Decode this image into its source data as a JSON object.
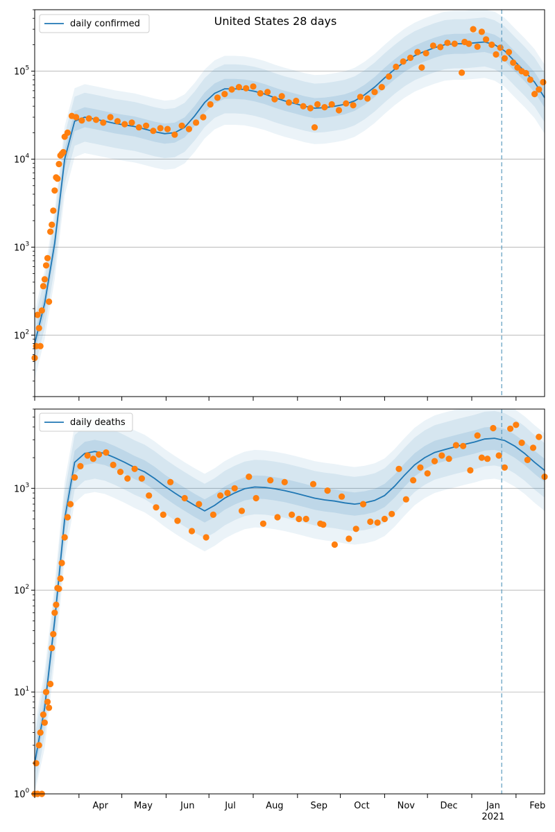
{
  "chart_data": [
    {
      "type": "line",
      "title": "United States 28 days",
      "yscale": "log",
      "ylim": [
        20,
        500000
      ],
      "xlim": [
        "2020-03-01",
        "2021-02-21"
      ],
      "grid": "y",
      "legend_position": "top-left",
      "series": [
        {
          "name": "daily confirmed",
          "kind": "line",
          "color": "#1f77b4",
          "x": [
            "2020-03-01",
            "2020-03-08",
            "2020-03-15",
            "2020-03-22",
            "2020-03-29",
            "2020-04-05",
            "2020-04-12",
            "2020-04-19",
            "2020-04-26",
            "2020-05-03",
            "2020-05-10",
            "2020-05-17",
            "2020-05-24",
            "2020-05-31",
            "2020-06-07",
            "2020-06-14",
            "2020-06-21",
            "2020-06-28",
            "2020-07-05",
            "2020-07-12",
            "2020-07-19",
            "2020-07-26",
            "2020-08-02",
            "2020-08-09",
            "2020-08-16",
            "2020-08-23",
            "2020-08-30",
            "2020-09-06",
            "2020-09-13",
            "2020-09-20",
            "2020-09-27",
            "2020-10-04",
            "2020-10-11",
            "2020-10-18",
            "2020-10-25",
            "2020-11-01",
            "2020-11-08",
            "2020-11-15",
            "2020-11-22",
            "2020-11-29",
            "2020-12-06",
            "2020-12-13",
            "2020-12-20",
            "2020-12-27",
            "2021-01-03",
            "2021-01-10",
            "2021-01-17",
            "2021-01-24",
            "2021-01-31",
            "2021-02-07",
            "2021-02-14",
            "2021-02-21"
          ],
          "y": [
            80,
            230,
            1100,
            10000,
            27000,
            30000,
            28500,
            27000,
            25500,
            24500,
            23500,
            22000,
            20500,
            19500,
            20000,
            23000,
            31000,
            44000,
            56000,
            63000,
            63000,
            62000,
            59000,
            55000,
            50000,
            46000,
            43000,
            40000,
            38000,
            38500,
            40000,
            42000,
            46000,
            54000,
            66000,
            84000,
            105000,
            128000,
            150000,
            168000,
            185000,
            200000,
            205000,
            205000,
            210000,
            215000,
            200000,
            170000,
            130000,
            100000,
            75000,
            50000
          ],
          "band_inner_factor": 1.3,
          "band_outer_factor": 1.9
        },
        {
          "name": "",
          "kind": "scatter",
          "color": "#ff7f0e",
          "x": [
            "2020-03-01",
            "2020-03-02",
            "2020-03-03",
            "2020-03-04",
            "2020-03-05",
            "2020-03-06",
            "2020-03-07",
            "2020-03-08",
            "2020-03-09",
            "2020-03-10",
            "2020-03-11",
            "2020-03-12",
            "2020-03-13",
            "2020-03-14",
            "2020-03-15",
            "2020-03-16",
            "2020-03-17",
            "2020-03-18",
            "2020-03-19",
            "2020-03-20",
            "2020-03-21",
            "2020-03-22",
            "2020-03-24",
            "2020-03-27",
            "2020-03-30",
            "2020-04-03",
            "2020-04-08",
            "2020-04-13",
            "2020-04-18",
            "2020-04-23",
            "2020-04-28",
            "2020-05-03",
            "2020-05-08",
            "2020-05-13",
            "2020-05-18",
            "2020-05-23",
            "2020-05-28",
            "2020-06-02",
            "2020-06-07",
            "2020-06-12",
            "2020-06-17",
            "2020-06-22",
            "2020-06-27",
            "2020-07-02",
            "2020-07-07",
            "2020-07-12",
            "2020-07-17",
            "2020-07-22",
            "2020-07-27",
            "2020-08-01",
            "2020-08-06",
            "2020-08-11",
            "2020-08-16",
            "2020-08-21",
            "2020-08-26",
            "2020-08-31",
            "2020-09-05",
            "2020-09-10",
            "2020-09-13",
            "2020-09-15",
            "2020-09-20",
            "2020-09-25",
            "2020-09-30",
            "2020-10-05",
            "2020-10-10",
            "2020-10-15",
            "2020-10-20",
            "2020-10-25",
            "2020-10-30",
            "2020-11-04",
            "2020-11-09",
            "2020-11-14",
            "2020-11-19",
            "2020-11-24",
            "2020-11-27",
            "2020-11-30",
            "2020-12-05",
            "2020-12-10",
            "2020-12-15",
            "2020-12-20",
            "2020-12-25",
            "2020-12-27",
            "2020-12-30",
            "2021-01-02",
            "2021-01-05",
            "2021-01-08",
            "2021-01-11",
            "2021-01-15",
            "2021-01-18",
            "2021-01-21",
            "2021-01-24",
            "2021-01-27",
            "2021-01-30",
            "2021-02-02",
            "2021-02-05",
            "2021-02-08",
            "2021-02-11",
            "2021-02-14",
            "2021-02-17",
            "2021-02-20"
          ],
          "y": [
            55,
            75,
            170,
            120,
            75,
            190,
            360,
            430,
            620,
            750,
            240,
            1500,
            1800,
            2600,
            4400,
            6200,
            6000,
            8800,
            11000,
            11500,
            12000,
            18000,
            20000,
            31000,
            30000,
            27500,
            29000,
            28000,
            26000,
            30000,
            27000,
            25000,
            26000,
            23000,
            24000,
            21000,
            22500,
            22000,
            19000,
            24000,
            22000,
            26000,
            30000,
            42000,
            50000,
            55000,
            62000,
            66000,
            64000,
            67000,
            56000,
            58000,
            48000,
            52000,
            44000,
            46000,
            40000,
            38000,
            23000,
            42000,
            39000,
            42000,
            36000,
            43000,
            41000,
            51000,
            49000,
            58000,
            66000,
            87000,
            112000,
            129000,
            142000,
            165000,
            110000,
            160000,
            195000,
            188000,
            210000,
            205000,
            96000,
            215000,
            205000,
            300000,
            190000,
            280000,
            230000,
            200000,
            155000,
            185000,
            140000,
            165000,
            125000,
            110000,
            100000,
            95000,
            80000,
            55000,
            62000,
            75000
          ]
        }
      ],
      "tick_labels_y": [
        "10^2",
        "10^3",
        "10^4",
        "10^5"
      ],
      "vline_date": "2021-01-22"
    },
    {
      "type": "line",
      "yscale": "log",
      "ylim": [
        1,
        6000
      ],
      "xlim": [
        "2020-03-01",
        "2021-02-21"
      ],
      "grid": "y",
      "legend_position": "top-left",
      "series": [
        {
          "name": "daily deaths",
          "kind": "line",
          "color": "#1f77b4",
          "x": [
            "2020-03-01",
            "2020-03-08",
            "2020-03-15",
            "2020-03-22",
            "2020-03-29",
            "2020-04-05",
            "2020-04-12",
            "2020-04-19",
            "2020-04-26",
            "2020-05-03",
            "2020-05-10",
            "2020-05-17",
            "2020-05-24",
            "2020-05-31",
            "2020-06-07",
            "2020-06-14",
            "2020-06-21",
            "2020-06-28",
            "2020-07-05",
            "2020-07-12",
            "2020-07-19",
            "2020-07-26",
            "2020-08-02",
            "2020-08-09",
            "2020-08-16",
            "2020-08-23",
            "2020-08-30",
            "2020-09-06",
            "2020-09-13",
            "2020-09-20",
            "2020-09-27",
            "2020-10-04",
            "2020-10-11",
            "2020-10-18",
            "2020-10-25",
            "2020-11-01",
            "2020-11-08",
            "2020-11-15",
            "2020-11-22",
            "2020-11-29",
            "2020-12-06",
            "2020-12-13",
            "2020-12-20",
            "2020-12-27",
            "2021-01-03",
            "2021-01-10",
            "2021-01-17",
            "2021-01-24",
            "2021-01-31",
            "2021-02-07",
            "2021-02-14",
            "2021-02-21"
          ],
          "y": [
            2,
            7,
            50,
            500,
            1800,
            2200,
            2300,
            2200,
            2000,
            1800,
            1600,
            1450,
            1250,
            1050,
            900,
            780,
            680,
            600,
            680,
            800,
            900,
            990,
            1030,
            1020,
            990,
            950,
            900,
            850,
            800,
            770,
            750,
            720,
            700,
            720,
            760,
            850,
            1050,
            1350,
            1700,
            2000,
            2250,
            2400,
            2550,
            2700,
            2850,
            3050,
            3100,
            2950,
            2600,
            2200,
            1800,
            1500
          ],
          "band_inner_factor": 1.3,
          "band_outer_factor": 1.85
        },
        {
          "name": "",
          "kind": "scatter",
          "color": "#ff7f0e",
          "x": [
            "2020-03-01",
            "2020-03-02",
            "2020-03-03",
            "2020-03-04",
            "2020-03-05",
            "2020-03-06",
            "2020-03-07",
            "2020-03-08",
            "2020-03-09",
            "2020-03-10",
            "2020-03-11",
            "2020-03-12",
            "2020-03-13",
            "2020-03-14",
            "2020-03-15",
            "2020-03-16",
            "2020-03-17",
            "2020-03-18",
            "2020-03-19",
            "2020-03-20",
            "2020-03-22",
            "2020-03-24",
            "2020-03-26",
            "2020-03-29",
            "2020-04-02",
            "2020-04-07",
            "2020-04-11",
            "2020-04-15",
            "2020-04-20",
            "2020-04-25",
            "2020-04-30",
            "2020-05-05",
            "2020-05-10",
            "2020-05-15",
            "2020-05-20",
            "2020-05-25",
            "2020-05-30",
            "2020-06-04",
            "2020-06-09",
            "2020-06-14",
            "2020-06-19",
            "2020-06-24",
            "2020-06-29",
            "2020-07-04",
            "2020-07-09",
            "2020-07-14",
            "2020-07-19",
            "2020-07-24",
            "2020-07-29",
            "2020-08-03",
            "2020-08-08",
            "2020-08-13",
            "2020-08-18",
            "2020-08-23",
            "2020-08-28",
            "2020-09-02",
            "2020-09-07",
            "2020-09-12",
            "2020-09-17",
            "2020-09-19",
            "2020-09-22",
            "2020-09-27",
            "2020-10-02",
            "2020-10-07",
            "2020-10-12",
            "2020-10-17",
            "2020-10-22",
            "2020-10-27",
            "2020-11-01",
            "2020-11-06",
            "2020-11-11",
            "2020-11-16",
            "2020-11-21",
            "2020-11-26",
            "2020-12-01",
            "2020-12-06",
            "2020-12-11",
            "2020-12-16",
            "2020-12-21",
            "2020-12-26",
            "2020-12-31",
            "2021-01-05",
            "2021-01-08",
            "2021-01-12",
            "2021-01-16",
            "2021-01-20",
            "2021-01-24",
            "2021-01-28",
            "2021-02-01",
            "2021-02-05",
            "2021-02-09",
            "2021-02-13",
            "2021-02-17",
            "2021-02-21"
          ],
          "y": [
            1,
            2,
            1,
            3,
            4,
            1,
            6,
            5,
            10,
            8,
            7,
            12,
            27,
            37,
            60,
            72,
            105,
            103,
            130,
            185,
            330,
            520,
            700,
            1280,
            1650,
            2100,
            1950,
            2150,
            2250,
            1700,
            1450,
            1250,
            1550,
            1250,
            850,
            650,
            550,
            1150,
            480,
            800,
            380,
            700,
            330,
            550,
            850,
            900,
            1000,
            600,
            1300,
            800,
            450,
            1200,
            520,
            1150,
            550,
            500,
            500,
            1100,
            450,
            440,
            950,
            280,
            830,
            320,
            400,
            700,
            470,
            460,
            500,
            560,
            1550,
            780,
            1200,
            1600,
            1400,
            1850,
            2100,
            1950,
            2650,
            2600,
            1500,
            3300,
            2000,
            1950,
            3900,
            2100,
            1600,
            3850,
            4200,
            2800,
            1900,
            2500,
            3200,
            1300
          ]
        }
      ],
      "tick_labels_y": [
        "10^0",
        "10^1",
        "10^2",
        "10^3"
      ],
      "vline_date": "2021-01-22"
    }
  ],
  "x_axis": {
    "month_labels": [
      "Apr",
      "May",
      "Jun",
      "Jul",
      "Aug",
      "Sep",
      "Oct",
      "Nov",
      "Dec",
      "Jan",
      "Feb"
    ],
    "month_dates": [
      "2020-04-01",
      "2020-05-01",
      "2020-06-01",
      "2020-07-01",
      "2020-08-01",
      "2020-09-01",
      "2020-10-01",
      "2020-11-01",
      "2020-12-01",
      "2021-01-01",
      "2021-02-01"
    ],
    "year_label": "2021"
  }
}
